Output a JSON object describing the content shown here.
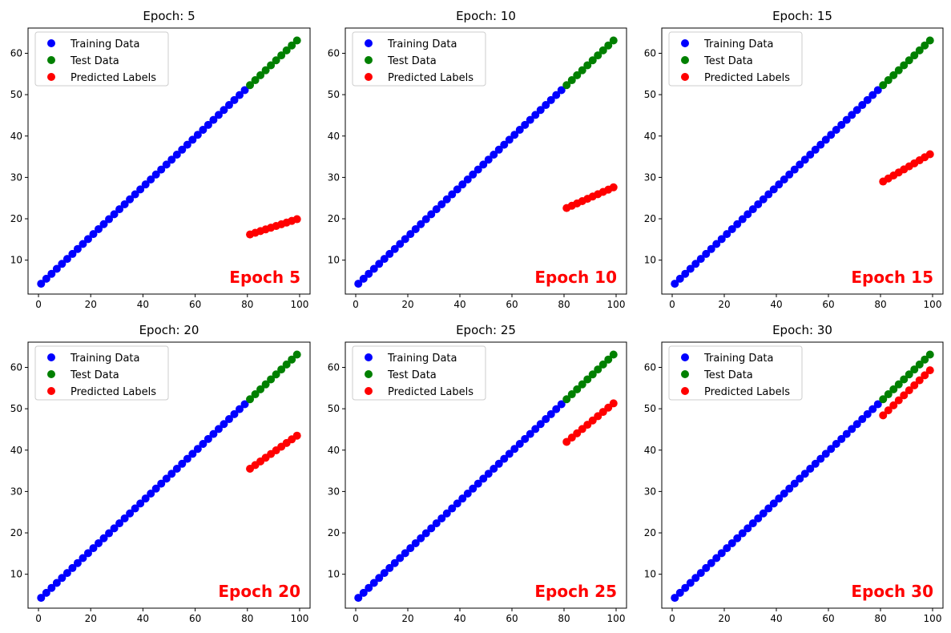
{
  "chart_data": [
    {
      "type": "scatter",
      "title": "Epoch: 5",
      "annotation": "Epoch 5",
      "xlim": [
        -4,
        104
      ],
      "ylim": [
        1.8,
        66.1
      ],
      "xticks": [
        0,
        20,
        40,
        60,
        80,
        100
      ],
      "yticks": [
        10,
        20,
        30,
        40,
        50,
        60
      ],
      "legend_position": "top-left",
      "grid": false,
      "series": [
        {
          "name": "Training Data",
          "color": "#0000ff",
          "x_start": 1,
          "x_end": 79,
          "x_step": 2,
          "y_start": 4.3,
          "y_end": 51.1
        },
        {
          "name": "Test Data",
          "color": "#008000",
          "x_start": 81,
          "x_end": 99,
          "x_step": 2,
          "y_start": 52.3,
          "y_end": 63.1
        },
        {
          "name": "Predicted Labels",
          "color": "#ff0000",
          "x_start": 81,
          "x_end": 99,
          "x_step": 2,
          "y_start": 16.2,
          "y_end": 19.9
        }
      ]
    },
    {
      "type": "scatter",
      "title": "Epoch: 10",
      "annotation": "Epoch 10",
      "xlim": [
        -4,
        104
      ],
      "ylim": [
        1.8,
        66.1
      ],
      "xticks": [
        0,
        20,
        40,
        60,
        80,
        100
      ],
      "yticks": [
        10,
        20,
        30,
        40,
        50,
        60
      ],
      "legend_position": "top-left",
      "grid": false,
      "series": [
        {
          "name": "Training Data",
          "color": "#0000ff",
          "x_start": 1,
          "x_end": 79,
          "x_step": 2,
          "y_start": 4.3,
          "y_end": 51.1
        },
        {
          "name": "Test Data",
          "color": "#008000",
          "x_start": 81,
          "x_end": 99,
          "x_step": 2,
          "y_start": 52.3,
          "y_end": 63.1
        },
        {
          "name": "Predicted Labels",
          "color": "#ff0000",
          "x_start": 81,
          "x_end": 99,
          "x_step": 2,
          "y_start": 22.6,
          "y_end": 27.6
        }
      ]
    },
    {
      "type": "scatter",
      "title": "Epoch: 15",
      "annotation": "Epoch 15",
      "xlim": [
        -4,
        104
      ],
      "ylim": [
        1.8,
        66.1
      ],
      "xticks": [
        0,
        20,
        40,
        60,
        80,
        100
      ],
      "yticks": [
        10,
        20,
        30,
        40,
        50,
        60
      ],
      "legend_position": "top-left",
      "grid": false,
      "series": [
        {
          "name": "Training Data",
          "color": "#0000ff",
          "x_start": 1,
          "x_end": 79,
          "x_step": 2,
          "y_start": 4.3,
          "y_end": 51.1
        },
        {
          "name": "Test Data",
          "color": "#008000",
          "x_start": 81,
          "x_end": 99,
          "x_step": 2,
          "y_start": 52.3,
          "y_end": 63.1
        },
        {
          "name": "Predicted Labels",
          "color": "#ff0000",
          "x_start": 81,
          "x_end": 99,
          "x_step": 2,
          "y_start": 29.0,
          "y_end": 35.6
        }
      ]
    },
    {
      "type": "scatter",
      "title": "Epoch: 20",
      "annotation": "Epoch 20",
      "xlim": [
        -4,
        104
      ],
      "ylim": [
        1.8,
        66.1
      ],
      "xticks": [
        0,
        20,
        40,
        60,
        80,
        100
      ],
      "yticks": [
        10,
        20,
        30,
        40,
        50,
        60
      ],
      "legend_position": "top-left",
      "grid": false,
      "series": [
        {
          "name": "Training Data",
          "color": "#0000ff",
          "x_start": 1,
          "x_end": 79,
          "x_step": 2,
          "y_start": 4.3,
          "y_end": 51.1
        },
        {
          "name": "Test Data",
          "color": "#008000",
          "x_start": 81,
          "x_end": 99,
          "x_step": 2,
          "y_start": 52.3,
          "y_end": 63.1
        },
        {
          "name": "Predicted Labels",
          "color": "#ff0000",
          "x_start": 81,
          "x_end": 99,
          "x_step": 2,
          "y_start": 35.5,
          "y_end": 43.5
        }
      ]
    },
    {
      "type": "scatter",
      "title": "Epoch: 25",
      "annotation": "Epoch 25",
      "xlim": [
        -4,
        104
      ],
      "ylim": [
        1.8,
        66.1
      ],
      "xticks": [
        0,
        20,
        40,
        60,
        80,
        100
      ],
      "yticks": [
        10,
        20,
        30,
        40,
        50,
        60
      ],
      "legend_position": "top-left",
      "grid": false,
      "series": [
        {
          "name": "Training Data",
          "color": "#0000ff",
          "x_start": 1,
          "x_end": 79,
          "x_step": 2,
          "y_start": 4.3,
          "y_end": 51.1
        },
        {
          "name": "Test Data",
          "color": "#008000",
          "x_start": 81,
          "x_end": 99,
          "x_step": 2,
          "y_start": 52.3,
          "y_end": 63.1
        },
        {
          "name": "Predicted Labels",
          "color": "#ff0000",
          "x_start": 81,
          "x_end": 99,
          "x_step": 2,
          "y_start": 42.0,
          "y_end": 51.3
        }
      ]
    },
    {
      "type": "scatter",
      "title": "Epoch: 30",
      "annotation": "Epoch 30",
      "xlim": [
        -4,
        104
      ],
      "ylim": [
        1.8,
        66.1
      ],
      "xticks": [
        0,
        20,
        40,
        60,
        80,
        100
      ],
      "yticks": [
        10,
        20,
        30,
        40,
        50,
        60
      ],
      "legend_position": "top-left",
      "grid": false,
      "series": [
        {
          "name": "Training Data",
          "color": "#0000ff",
          "x_start": 1,
          "x_end": 79,
          "x_step": 2,
          "y_start": 4.3,
          "y_end": 51.1
        },
        {
          "name": "Test Data",
          "color": "#008000",
          "x_start": 81,
          "x_end": 99,
          "x_step": 2,
          "y_start": 52.3,
          "y_end": 63.1
        },
        {
          "name": "Predicted Labels",
          "color": "#ff0000",
          "x_start": 81,
          "x_end": 99,
          "x_step": 2,
          "y_start": 48.4,
          "y_end": 59.3
        }
      ]
    }
  ],
  "annotation_color": "#ff0000"
}
